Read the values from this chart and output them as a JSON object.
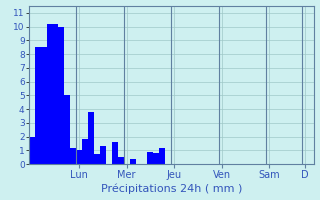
{
  "values": [
    2,
    8.5,
    8.5,
    10.2,
    10.2,
    10.0,
    5.0,
    1.2,
    1.0,
    1.8,
    3.8,
    0.7,
    1.3,
    0,
    1.6,
    0.5,
    0,
    0.4,
    0,
    0,
    0.9,
    0.8,
    1.2,
    0,
    0,
    0,
    0,
    0,
    0,
    0,
    0,
    0,
    0,
    0,
    0,
    0,
    0,
    0,
    0,
    0,
    0,
    0,
    0,
    0,
    0,
    0,
    0,
    0
  ],
  "day_labels": [
    "Lun",
    "Mer",
    "Jeu",
    "Ven",
    "Sam",
    "D"
  ],
  "day_tick_positions": [
    8,
    16,
    24,
    32,
    40,
    46
  ],
  "day_line_positions": [
    8,
    16,
    24,
    32,
    40,
    46
  ],
  "xlabel": "Précipitations 24h ( mm )",
  "yticks": [
    0,
    1,
    2,
    3,
    4,
    5,
    6,
    7,
    8,
    9,
    10,
    11
  ],
  "ylim": [
    0,
    11.5
  ],
  "bar_color": "#0000ff",
  "background_color": "#cef0f0",
  "grid_color": "#a0c8c8",
  "day_line_color": "#6080a0",
  "tick_label_color": "#3355bb",
  "xlabel_color": "#3355bb",
  "n_bars": 48
}
